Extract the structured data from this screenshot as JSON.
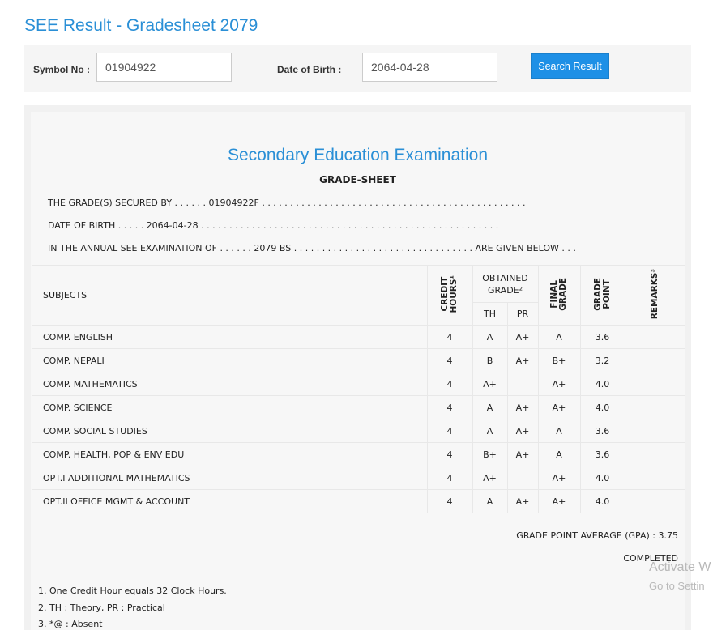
{
  "page": {
    "title": "SEE Result - Gradesheet 2079"
  },
  "search": {
    "symbol_label": "Symbol No :",
    "symbol_value": "01904922",
    "dob_label": "Date of Birth :",
    "dob_value": "2064-04-28",
    "button_label": "Search Result"
  },
  "sheet": {
    "exam_title": "Secondary Education Examination",
    "sheet_title": "GRADE-SHEET",
    "secured_line": "THE GRADE(S) SECURED BY . . . . . . 01904922F . . . . . . . . . . . . . . . . . . . . . . . . . . . . . . . . . . . . . . . . . . . . . . .",
    "dob_line": "DATE OF BIRTH . . . . . 2064-04-28 . . . . . . . . . . . . . . . . . . . . . . . . . . . . . . . . . . . . . . . . . . . . . . . . . . . . .",
    "exam_line": "IN THE ANNUAL SEE EXAMINATION OF . . . . . . 2079 BS . . . . . . . . . . . . . . . . . . . . . . . . . . . . . . . . ARE GIVEN BELOW . . ."
  },
  "table": {
    "headers": {
      "subjects": "SUBJECTS",
      "credit_hours": "CREDIT\nHOURS¹",
      "obtained_grade": "OBTAINED GRADE²",
      "th": "TH",
      "pr": "PR",
      "final_grade": "FINAL\nGRADE",
      "grade_point": "GRADE\nPOINT",
      "remarks": "REMARKS³"
    },
    "rows": [
      {
        "subject": "COMP. ENGLISH",
        "credit": "4",
        "th": "A",
        "pr": "A+",
        "final": "A",
        "gp": "3.6",
        "remarks": ""
      },
      {
        "subject": "COMP. NEPALI",
        "credit": "4",
        "th": "B",
        "pr": "A+",
        "final": "B+",
        "gp": "3.2",
        "remarks": ""
      },
      {
        "subject": "COMP. MATHEMATICS",
        "credit": "4",
        "th": "A+",
        "pr": "",
        "final": "A+",
        "gp": "4.0",
        "remarks": ""
      },
      {
        "subject": "COMP. SCIENCE",
        "credit": "4",
        "th": "A",
        "pr": "A+",
        "final": "A+",
        "gp": "4.0",
        "remarks": ""
      },
      {
        "subject": "COMP. SOCIAL STUDIES",
        "credit": "4",
        "th": "A",
        "pr": "A+",
        "final": "A",
        "gp": "3.6",
        "remarks": ""
      },
      {
        "subject": "COMP. HEALTH, POP & ENV EDU",
        "credit": "4",
        "th": "B+",
        "pr": "A+",
        "final": "A",
        "gp": "3.6",
        "remarks": ""
      },
      {
        "subject": "OPT.I ADDITIONAL MATHEMATICS",
        "credit": "4",
        "th": "A+",
        "pr": "",
        "final": "A+",
        "gp": "4.0",
        "remarks": ""
      },
      {
        "subject": "OPT.II OFFICE MGMT & ACCOUNT",
        "credit": "4",
        "th": "A",
        "pr": "A+",
        "final": "A+",
        "gp": "4.0",
        "remarks": ""
      }
    ]
  },
  "summary": {
    "gpa": "GRADE POINT AVERAGE (GPA) : 3.75",
    "status": "COMPLETED"
  },
  "notes": [
    "1. One Credit Hour equals 32 Clock Hours.",
    "2. TH : Theory, PR : Practical",
    "3. *@ : Absent"
  ],
  "watermark": {
    "line1": "Activate W",
    "line2": "Go to Settin"
  }
}
